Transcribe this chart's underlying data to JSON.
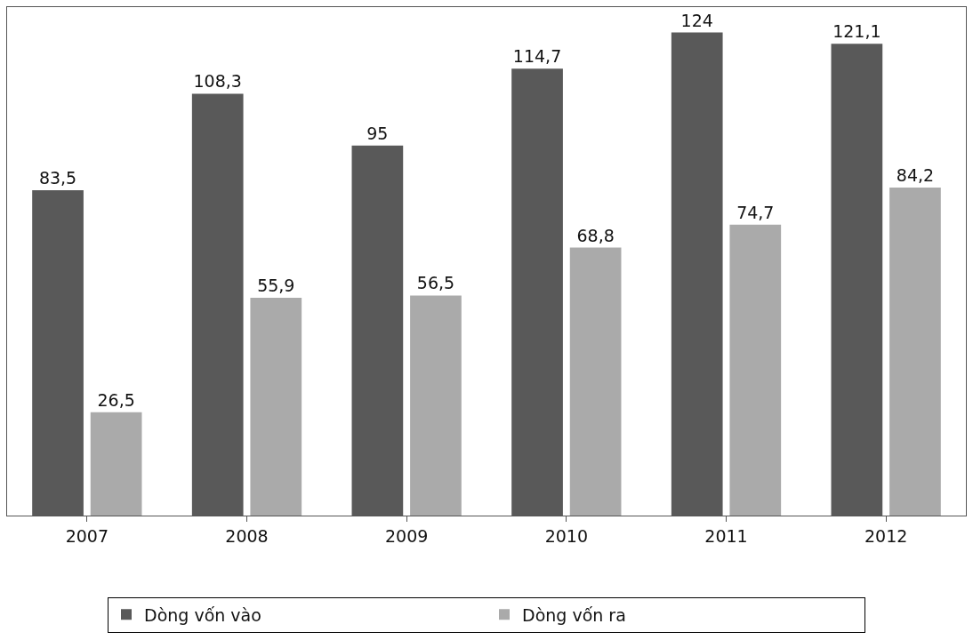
{
  "chart_data": {
    "type": "bar",
    "categories": [
      "2007",
      "2008",
      "2009",
      "2010",
      "2011",
      "2012"
    ],
    "series": [
      {
        "name": "Dòng vốn vào",
        "color": "#595959",
        "values": [
          83.5,
          108.3,
          95,
          114.7,
          124,
          121.1
        ],
        "value_labels": [
          "83,5",
          "108,3",
          "95",
          "114,7",
          "124",
          "121,1"
        ]
      },
      {
        "name": "Dòng vốn ra",
        "color": "#aaaaaa",
        "values": [
          26.5,
          55.9,
          56.5,
          68.8,
          74.7,
          84.2
        ],
        "value_labels": [
          "26,5",
          "55,9",
          "56,5",
          "68,8",
          "74,7",
          "84,2"
        ]
      }
    ],
    "grid": false,
    "legend": "bottom",
    "tick_labels": "x"
  }
}
